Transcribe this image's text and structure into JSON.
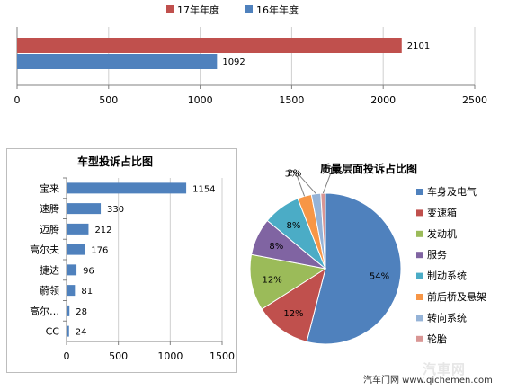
{
  "chart_data": [
    {
      "type": "bar",
      "orientation": "horizontal",
      "title": "",
      "legend_position": "top",
      "grid": true,
      "xlim": [
        0,
        2500
      ],
      "x_ticks": [
        "0",
        "500",
        "1000",
        "1500",
        "2000",
        "2500"
      ],
      "series": [
        {
          "name": "17年年度",
          "color": "#c0504d",
          "values": [
            2101
          ]
        },
        {
          "name": "16年年度",
          "color": "#4f81bd",
          "values": [
            1092
          ]
        }
      ]
    },
    {
      "type": "bar",
      "orientation": "horizontal",
      "title": "车型投诉占比图",
      "grid": true,
      "xlim": [
        0,
        1500
      ],
      "x_ticks": [
        "0",
        "500",
        "1000",
        "1500"
      ],
      "bar_color": "#4f81bd",
      "categories": [
        "宝来",
        "速腾",
        "迈腾",
        "高尔夫",
        "捷达",
        "蔚领",
        "高尔…",
        "CC"
      ],
      "values": [
        1154,
        330,
        212,
        176,
        96,
        81,
        28,
        24
      ]
    },
    {
      "type": "pie",
      "title": "质量层面投诉占比图",
      "legend_position": "right",
      "slices": [
        {
          "label": "车身及电气",
          "percent": "54%",
          "value": 54,
          "color": "#4f81bd"
        },
        {
          "label": "变速箱",
          "percent": "12%",
          "value": 12,
          "color": "#c0504d"
        },
        {
          "label": "发动机",
          "percent": "12%",
          "value": 12,
          "color": "#9bbb59"
        },
        {
          "label": "服务",
          "percent": "8%",
          "value": 8,
          "color": "#8064a2"
        },
        {
          "label": "制动系统",
          "percent": "8%",
          "value": 8,
          "color": "#4bacc6"
        },
        {
          "label": "前后桥及悬架",
          "percent": "3%",
          "value": 3,
          "color": "#f79646"
        },
        {
          "label": "转向系统",
          "percent": "2%",
          "value": 2,
          "color": "#95b3d7"
        },
        {
          "label": "轮胎",
          "percent": "1%",
          "value": 1,
          "color": "#d99694"
        }
      ]
    }
  ],
  "watermark": {
    "text": "汽车门网 www.qichemen.com",
    "logo_text": "汽車网"
  }
}
